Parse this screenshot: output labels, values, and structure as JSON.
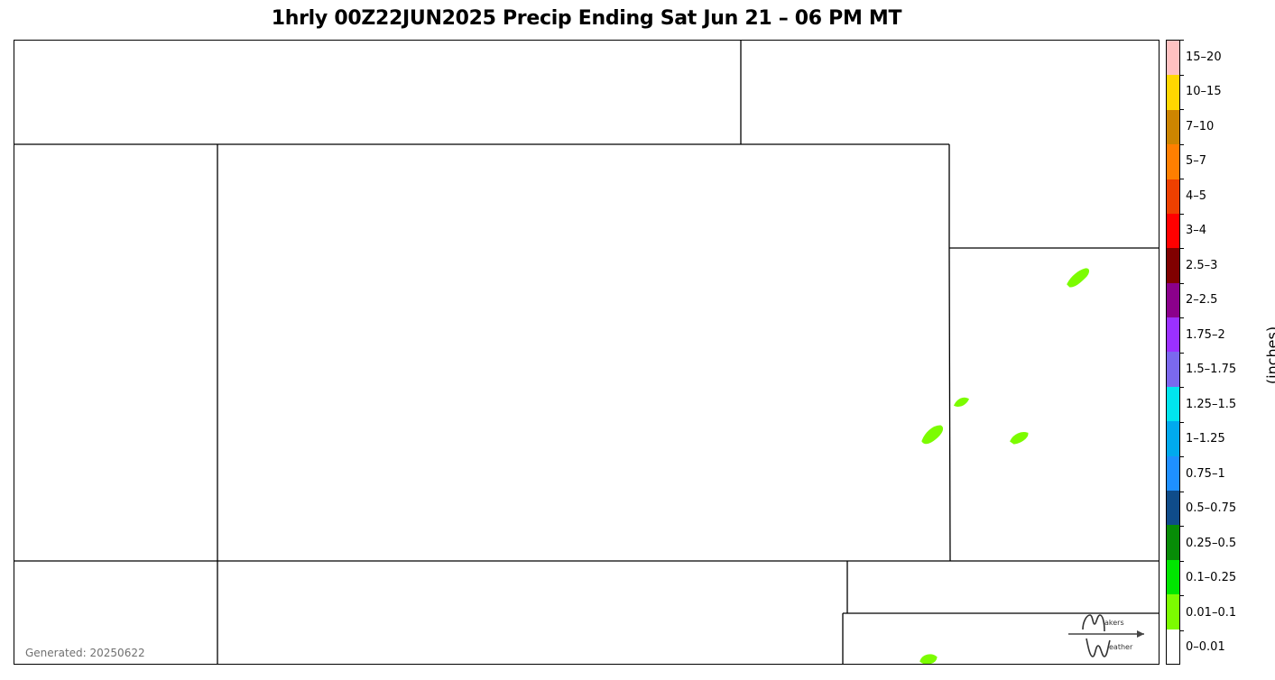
{
  "title": "1hrly 00Z22JUN2025 Precip Ending Sat Jun 21 – 06 PM MT",
  "generated": "Generated: 20250622",
  "units": "(inches)",
  "logo": {
    "name": "Makers Weather",
    "text_top": "akers",
    "text_bottom": "eather"
  },
  "colorbar": {
    "levels": [
      {
        "label": "0–0.01",
        "color": "#ffffff"
      },
      {
        "label": "0.01–0.1",
        "color": "#7cfc00"
      },
      {
        "label": "0.1–0.25",
        "color": "#00e600"
      },
      {
        "label": "0.25–0.5",
        "color": "#078c07"
      },
      {
        "label": "0.5–0.75",
        "color": "#0f4c8a"
      },
      {
        "label": "0.75–1",
        "color": "#1e90ff"
      },
      {
        "label": "1–1.25",
        "color": "#00aaee"
      },
      {
        "label": "1.25–1.5",
        "color": "#00e5ee"
      },
      {
        "label": "1.5–1.75",
        "color": "#7b68ee"
      },
      {
        "label": "1.75–2",
        "color": "#9b30ff"
      },
      {
        "label": "2–2.5",
        "color": "#8b008b"
      },
      {
        "label": "2.5–3",
        "color": "#800000"
      },
      {
        "label": "3–4",
        "color": "#ff0000"
      },
      {
        "label": "4–5",
        "color": "#ee4000"
      },
      {
        "label": "5–7",
        "color": "#ff7f00"
      },
      {
        "label": "7–10",
        "color": "#cd8500"
      },
      {
        "label": "10–15",
        "color": "#ffd700"
      },
      {
        "label": "15–20",
        "color": "#ffc1c1"
      }
    ]
  },
  "precip_color": "#7cfc00"
}
